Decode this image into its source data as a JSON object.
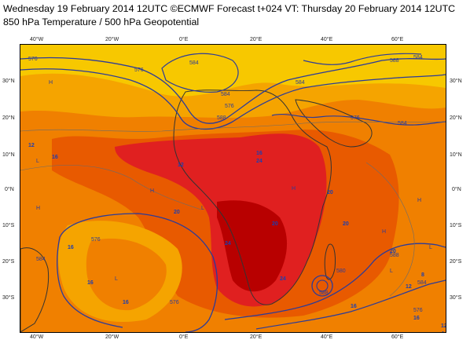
{
  "header": {
    "line1": "Wednesday 19 February 2014 12UTC ©ECMWF Forecast t+024 VT: Thursday 20 February 2014 12UTC",
    "line2": "850 hPa Temperature / 500 hPa Geopotential"
  },
  "axes": {
    "lon_labels": [
      "40°W",
      "20°W",
      "0°E",
      "20°E",
      "40°E",
      "60°E"
    ],
    "lat_labels_left": [
      "30°N",
      "20°N",
      "10°N",
      "0°N",
      "10°S",
      "20°S",
      "30°S"
    ],
    "lat_labels_right": [
      "30°N",
      "20°N",
      "10°N",
      "0°N",
      "10°S",
      "20°S",
      "30°S"
    ]
  },
  "colors": {
    "cool_yellow": "#f7c800",
    "light_orange": "#f5a400",
    "orange": "#f08000",
    "dark_orange": "#e85a00",
    "red": "#e02020",
    "dark_red": "#b80000",
    "contour": "#2b3b9a",
    "coast": "#333333"
  },
  "contour_labels": {
    "geopotential": [
      "576",
      "576",
      "584",
      "584",
      "576",
      "584",
      "588",
      "584",
      "588",
      "576",
      "584",
      "576",
      "584",
      "576",
      "588",
      "580",
      "588",
      "576",
      "584"
    ],
    "temperature": [
      "12",
      "16",
      "12",
      "16",
      "20",
      "24",
      "20",
      "24",
      "16",
      "20",
      "24",
      "20",
      "16",
      "16",
      "20",
      "16",
      "12",
      "8",
      "4",
      "16",
      "12",
      "8"
    ]
  },
  "pressure_marks": [
    "H",
    "H",
    "H",
    "L",
    "L",
    "H",
    "L",
    "H",
    "L",
    "H",
    "L"
  ]
}
